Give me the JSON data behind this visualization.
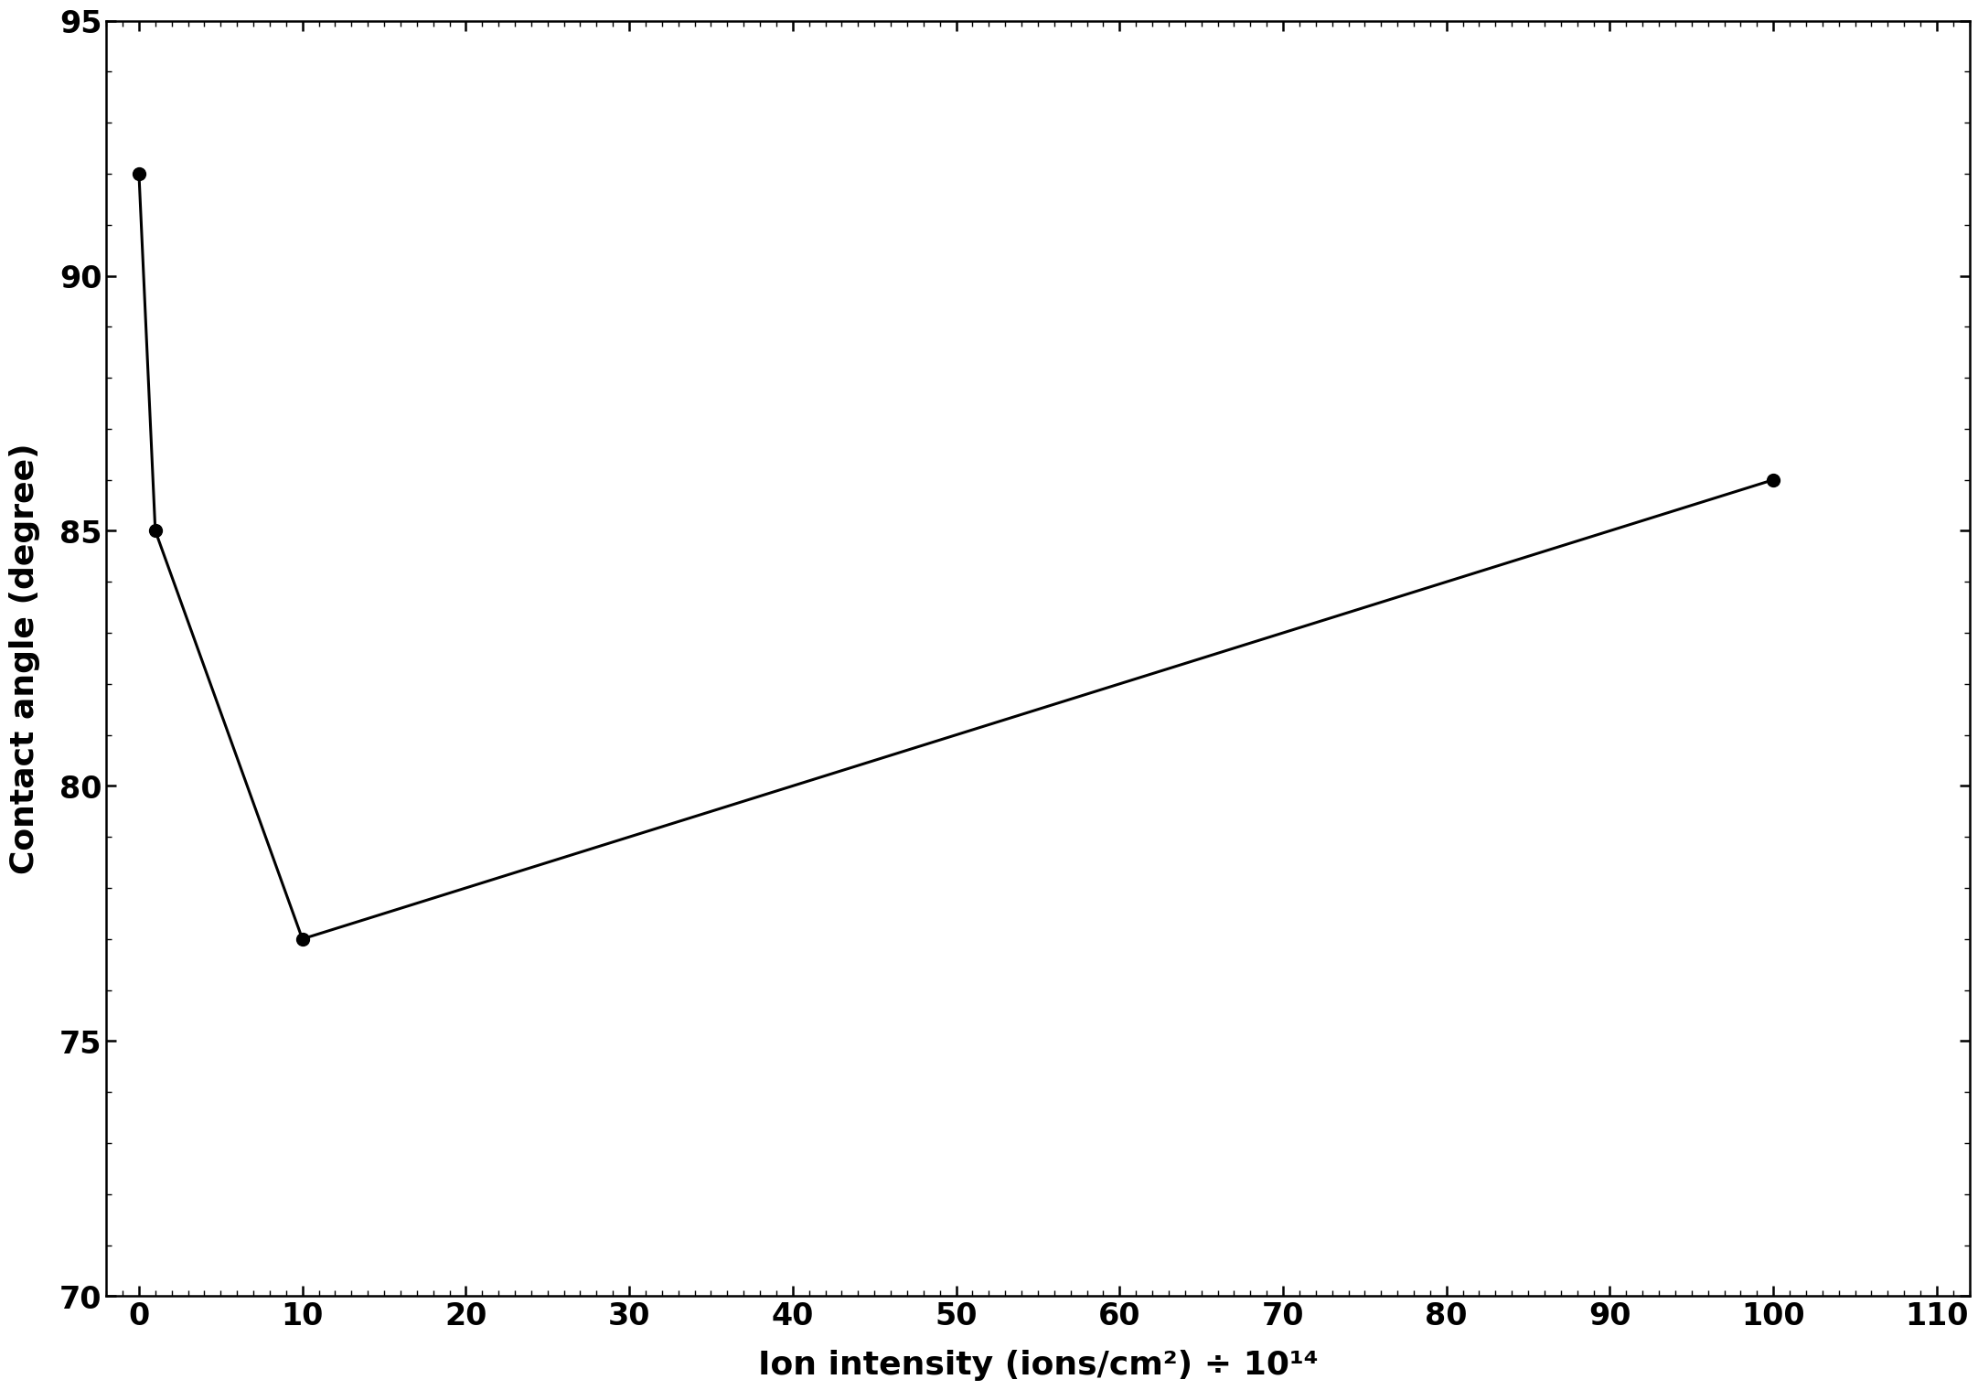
{
  "x_values": [
    0,
    1,
    10,
    100
  ],
  "y_values": [
    92,
    85,
    77,
    86
  ],
  "xlabel": "Ion intensity (ions/cm²) ÷ 10¹⁴",
  "ylabel": "Contact angle (degree)",
  "xlim": [
    -2,
    112
  ],
  "ylim": [
    70,
    95
  ],
  "xticks": [
    0,
    10,
    20,
    30,
    40,
    50,
    60,
    70,
    80,
    90,
    100,
    110
  ],
  "yticks": [
    70,
    75,
    80,
    85,
    90,
    95
  ],
  "line_color": "#000000",
  "marker": "o",
  "markersize": 10,
  "linewidth": 2.2,
  "background_color": "#ffffff",
  "label_fontsize": 26,
  "tick_fontsize": 24
}
